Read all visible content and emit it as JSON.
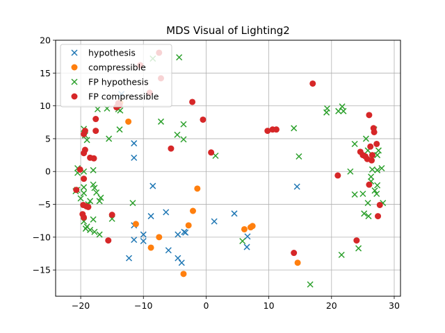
{
  "chart_data": {
    "type": "scatter",
    "title": "MDS Visual of Lighting2",
    "xlabel": "",
    "ylabel": "",
    "xlim": [
      -24,
      31
    ],
    "ylim": [
      -19,
      20
    ],
    "xticks": [
      -20,
      -10,
      0,
      10,
      20,
      30
    ],
    "yticks": [
      -15,
      -10,
      -5,
      0,
      5,
      10,
      15,
      20
    ],
    "xtick_labels": [
      "−20",
      "−10",
      "0",
      "10",
      "20",
      "30"
    ],
    "ytick_labels": [
      "−15",
      "−10",
      "−5",
      "0",
      "5",
      "10",
      "15",
      "20"
    ],
    "grid": true,
    "legend_position": "upper-left",
    "series": [
      {
        "name": "hypothesis",
        "marker": "x",
        "color": "#1f77b4",
        "points": [
          [
            -13.5,
            11.8
          ],
          [
            -11.5,
            4.3
          ],
          [
            -11.5,
            2.1
          ],
          [
            -8.5,
            -2.2
          ],
          [
            -11.5,
            -8.2
          ],
          [
            -11.5,
            -10.4
          ],
          [
            -12.3,
            -13.2
          ],
          [
            -10.0,
            -9.6
          ],
          [
            -10.0,
            -10.6
          ],
          [
            -8.8,
            -6.8
          ],
          [
            -6.4,
            -6.2
          ],
          [
            -6.0,
            -12.0
          ],
          [
            -4.5,
            -13.2
          ],
          [
            -4.5,
            -9.6
          ],
          [
            -3.9,
            -13.9
          ],
          [
            -3.3,
            -9.3
          ],
          [
            -3.5,
            -9.2
          ],
          [
            1.3,
            -7.6
          ],
          [
            4.5,
            -6.4
          ],
          [
            6.6,
            -9.9
          ],
          [
            6.5,
            -11.5
          ],
          [
            14.5,
            -2.3
          ]
        ]
      },
      {
        "name": "compressible",
        "marker": "o",
        "color": "#ff7f0e",
        "points": [
          [
            -13.7,
            10.5
          ],
          [
            -12.4,
            7.6
          ],
          [
            -11.2,
            -8.0
          ],
          [
            -8.8,
            -11.6
          ],
          [
            -7.5,
            -10.0
          ],
          [
            -3.6,
            -15.6
          ],
          [
            -2.8,
            -8.2
          ],
          [
            -1.4,
            -2.6
          ],
          [
            -2.1,
            -6.0
          ],
          [
            6.1,
            -8.8
          ],
          [
            7.1,
            -8.5
          ],
          [
            7.4,
            -8.3
          ],
          [
            14.6,
            -13.9
          ]
        ]
      },
      {
        "name": "FP hypothesis",
        "marker": "x",
        "color": "#2ca02c",
        "points": [
          [
            -20.5,
            0.5
          ],
          [
            -20.5,
            -0.2
          ],
          [
            -20.6,
            -2.8
          ],
          [
            -20.8,
            -3.0
          ],
          [
            -20.0,
            -4.1
          ],
          [
            -19.5,
            -2.4
          ],
          [
            -19.5,
            6.5
          ],
          [
            -19.3,
            5.5
          ],
          [
            -19.0,
            4.8
          ],
          [
            -19.5,
            0.0
          ],
          [
            -19.5,
            -3.3
          ],
          [
            -18.8,
            -5.0
          ],
          [
            -18.5,
            -4.5
          ],
          [
            -19.5,
            -7.6
          ],
          [
            -19.0,
            -8.4
          ],
          [
            -19.2,
            -8.7
          ],
          [
            -18.0,
            -7.3
          ],
          [
            -18.5,
            -8.9
          ],
          [
            -17.8,
            -9.2
          ],
          [
            -17.0,
            -9.6
          ],
          [
            -17.8,
            -2.5
          ],
          [
            -18.0,
            -2.0
          ],
          [
            -18.0,
            0.2
          ],
          [
            -17.5,
            -3.2
          ],
          [
            -17.0,
            -4.5
          ],
          [
            -16.8,
            -4.0
          ],
          [
            -17.3,
            9.5
          ],
          [
            -15.8,
            9.6
          ],
          [
            -15.5,
            5.0
          ],
          [
            -15.0,
            -7.2
          ],
          [
            -14.0,
            9.5
          ],
          [
            -13.7,
            9.3
          ],
          [
            -13.8,
            6.4
          ],
          [
            -11.7,
            -4.8
          ],
          [
            -8.5,
            17.2
          ],
          [
            -7.2,
            7.6
          ],
          [
            -4.6,
            5.6
          ],
          [
            -4.3,
            17.4
          ],
          [
            -3.6,
            7.2
          ],
          [
            -3.6,
            4.9
          ],
          [
            1.5,
            2.4
          ],
          [
            5.8,
            -10.6
          ],
          [
            14.0,
            6.6
          ],
          [
            14.8,
            2.3
          ],
          [
            16.6,
            -17.2
          ],
          [
            19.2,
            9.0
          ],
          [
            19.3,
            9.6
          ],
          [
            21.1,
            9.2
          ],
          [
            21.7,
            9.9
          ],
          [
            21.9,
            9.2
          ],
          [
            21.6,
            -12.7
          ],
          [
            23.0,
            0.0
          ],
          [
            23.7,
            -3.5
          ],
          [
            23.7,
            4.2
          ],
          [
            24.3,
            -11.7
          ],
          [
            25.0,
            -3.4
          ],
          [
            25.2,
            -6.4
          ],
          [
            25.9,
            -6.8
          ],
          [
            25.5,
            5.0
          ],
          [
            25.8,
            -4.8
          ],
          [
            25.8,
            3.2
          ],
          [
            26.3,
            -1.5
          ],
          [
            26.5,
            0.3
          ],
          [
            26.3,
            -0.8
          ],
          [
            26.8,
            6.4
          ],
          [
            26.9,
            -2.9
          ],
          [
            27.2,
            -3.4
          ],
          [
            27.3,
            -2.1
          ],
          [
            27.3,
            0.2
          ],
          [
            27.3,
            2.5
          ],
          [
            27.5,
            3.2
          ],
          [
            28.0,
            0.5
          ],
          [
            28.2,
            -4.8
          ]
        ]
      },
      {
        "name": "FP compressible",
        "marker": "o",
        "color": "#d62728",
        "points": [
          [
            -20.7,
            -2.8
          ],
          [
            -20.1,
            0.3
          ],
          [
            -19.6,
            -5.1
          ],
          [
            -19.7,
            -6.5
          ],
          [
            -19.5,
            -7.0
          ],
          [
            -19.5,
            -1.1
          ],
          [
            -19.5,
            2.8
          ],
          [
            -19.3,
            3.3
          ],
          [
            -19.5,
            5.7
          ],
          [
            -19.3,
            6.2
          ],
          [
            -19.1,
            -5.3
          ],
          [
            -18.8,
            -5.4
          ],
          [
            -18.5,
            2.1
          ],
          [
            -17.9,
            2.0
          ],
          [
            -17.6,
            6.2
          ],
          [
            -17.6,
            8.0
          ],
          [
            -15.6,
            -10.5
          ],
          [
            -15.0,
            -6.6
          ],
          [
            -14.3,
            9.8
          ],
          [
            -14.0,
            10.4
          ],
          [
            -13.8,
            10.1
          ],
          [
            -10.5,
            16.2
          ],
          [
            -9.0,
            12.0
          ],
          [
            -7.5,
            18.1
          ],
          [
            -7.2,
            14.2
          ],
          [
            -5.6,
            3.5
          ],
          [
            -2.2,
            10.6
          ],
          [
            -0.5,
            7.9
          ],
          [
            0.8,
            2.9
          ],
          [
            9.8,
            6.2
          ],
          [
            10.6,
            6.4
          ],
          [
            11.2,
            6.4
          ],
          [
            14.0,
            -12.4
          ],
          [
            17.0,
            13.4
          ],
          [
            21.0,
            -0.6
          ],
          [
            24.0,
            -10.5
          ],
          [
            24.6,
            3.0
          ],
          [
            25.0,
            2.5
          ],
          [
            25.4,
            2.3
          ],
          [
            25.7,
            1.9
          ],
          [
            26.0,
            -2.0
          ],
          [
            26.0,
            8.6
          ],
          [
            26.2,
            3.8
          ],
          [
            26.4,
            1.7
          ],
          [
            26.5,
            2.5
          ],
          [
            26.7,
            6.6
          ],
          [
            26.8,
            6.0
          ],
          [
            27.2,
            4.2
          ],
          [
            27.4,
            -6.8
          ],
          [
            27.7,
            -5.1
          ]
        ]
      }
    ]
  }
}
